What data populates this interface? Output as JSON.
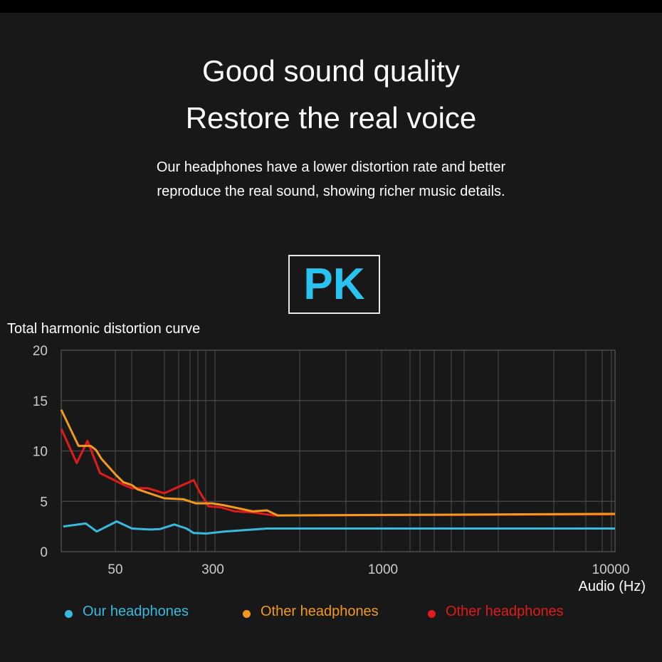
{
  "header": {
    "title_line1": "Good sound quality",
    "title_line2": "Restore the real voice",
    "desc_line1": "Our headphones have a lower distortion rate and better",
    "desc_line2": "reproduce the real sound, showing richer music details.",
    "badge": "PK"
  },
  "chart_data": {
    "type": "line",
    "title": "Total harmonic distortion curve",
    "xlabel": "Audio (Hz)",
    "ylabel": "",
    "ylim": [
      0,
      20
    ],
    "yticks": [
      "0",
      "5",
      "10",
      "15",
      "20"
    ],
    "xticks": [
      "50",
      "300",
      "1000",
      "10000"
    ],
    "grid": true,
    "legend_position": "bottom",
    "series": [
      {
        "name": "Our headphones",
        "color": "#3ab9de",
        "x": [
          20.7,
          30.3,
          36.5,
          51.3,
          68,
          94,
          114,
          148,
          185,
          211,
          267,
          325,
          440,
          10500
        ],
        "y": [
          2.5,
          2.8,
          2.0,
          3.0,
          2.3,
          2.2,
          2.25,
          2.7,
          2.3,
          1.85,
          1.8,
          2.0,
          2.3,
          2.3
        ]
      },
      {
        "name": "Other headphones",
        "color": "#f39a1e",
        "x": [
          20,
          26.8,
          32.9,
          36,
          39.6,
          50.7,
          58,
          68,
          75,
          123,
          175,
          219,
          296,
          325,
          398,
          440,
          475,
          10500
        ],
        "y": [
          14.1,
          10.5,
          10.5,
          10.1,
          9.2,
          7.6,
          6.9,
          6.6,
          6.2,
          5.3,
          5.2,
          4.8,
          4.8,
          4.6,
          4.0,
          4.1,
          3.6,
          3.75
        ]
      },
      {
        "name": "Other headphones",
        "color": "#e11b1b",
        "x": [
          20,
          26,
          31.2,
          38.6,
          59,
          68,
          91,
          123,
          211,
          234,
          277,
          317,
          351,
          398,
          463,
          10500
        ],
        "y": [
          12.2,
          8.8,
          11.0,
          7.8,
          6.6,
          6.3,
          6.3,
          5.8,
          7.1,
          6.0,
          4.5,
          4.4,
          4.0,
          3.9,
          3.6,
          3.7
        ]
      }
    ]
  }
}
